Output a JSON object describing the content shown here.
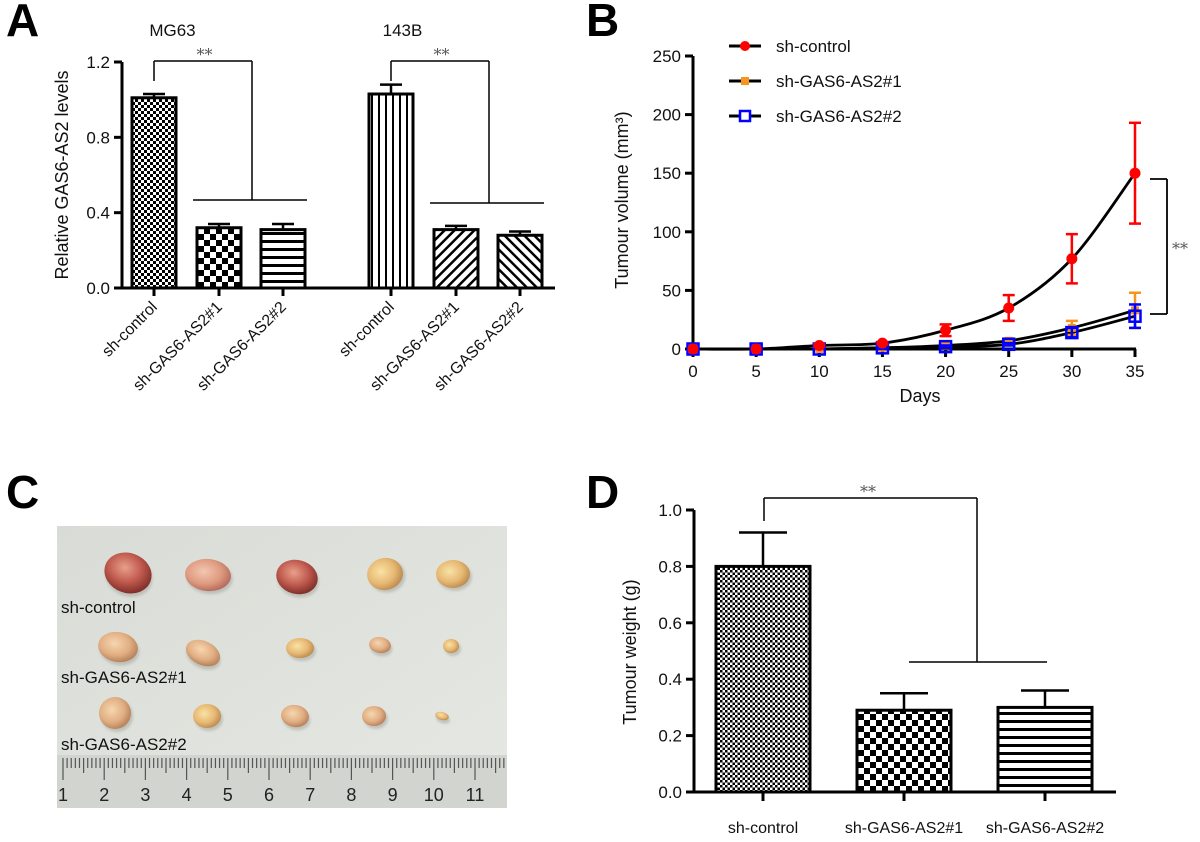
{
  "figure": {
    "panels": {
      "A": "A",
      "B": "B",
      "C": "C",
      "D": "D"
    }
  },
  "chart_data": [
    {
      "id": "A",
      "type": "bar",
      "title": "",
      "ylabel": "Relative GAS6-AS2 levels",
      "xlabel": "",
      "ylim": [
        0,
        1.2
      ],
      "yticks": [
        "0.0",
        "0.4",
        "0.8",
        "1.2"
      ],
      "ytick_values": [
        0,
        0.4,
        0.8,
        1.2
      ],
      "groups": [
        {
          "name": "MG63",
          "categories": [
            "sh-control",
            "sh-GAS6-AS2#1",
            "sh-GAS6-AS2#2"
          ],
          "values": [
            1.01,
            0.32,
            0.31
          ],
          "errors": [
            0.02,
            0.02,
            0.03
          ],
          "patterns": [
            "fine-check",
            "coarse-check",
            "horizontal-lines"
          ],
          "significance": "**"
        },
        {
          "name": "143B",
          "categories": [
            "sh-control",
            "sh-GAS6-AS2#1",
            "sh-GAS6-AS2#2"
          ],
          "values": [
            1.03,
            0.31,
            0.28
          ],
          "errors": [
            0.05,
            0.02,
            0.02
          ],
          "patterns": [
            "vertical-lines",
            "diagonal-right",
            "diagonal-left"
          ],
          "significance": "**"
        }
      ]
    },
    {
      "id": "B",
      "type": "line",
      "title": "",
      "xlabel": "Days",
      "ylabel": "Tumour volume (mm³)",
      "xlim": [
        0,
        35
      ],
      "ylim": [
        0,
        250
      ],
      "xticks": [
        "0",
        "5",
        "10",
        "15",
        "20",
        "25",
        "30",
        "35"
      ],
      "xtick_values": [
        0,
        5,
        10,
        15,
        20,
        25,
        30,
        35
      ],
      "yticks": [
        "0",
        "50",
        "100",
        "150",
        "200",
        "250"
      ],
      "ytick_values": [
        0,
        50,
        100,
        150,
        200,
        250
      ],
      "x": [
        0,
        5,
        10,
        15,
        20,
        25,
        30,
        35
      ],
      "legend_position": "top-left",
      "significance": "**",
      "series": [
        {
          "name": "sh-control",
          "color": "#ff0000",
          "marker": "circle",
          "values": [
            0,
            0,
            3,
            5,
            16,
            35,
            77,
            150
          ],
          "errors": [
            0,
            0,
            1,
            1,
            5,
            11,
            21,
            43
          ]
        },
        {
          "name": "sh-GAS6-AS2#1",
          "color": "#f7941d",
          "marker": "square-filled",
          "values": [
            0,
            0,
            0,
            1,
            3,
            7,
            18,
            33
          ],
          "errors": [
            0,
            0,
            0,
            1,
            1,
            2,
            6,
            15
          ]
        },
        {
          "name": "sh-GAS6-AS2#2",
          "color": "#0000ff",
          "marker": "square-open",
          "values": [
            0,
            0,
            0,
            1,
            2,
            4,
            14,
            28
          ],
          "errors": [
            0,
            0,
            0,
            1,
            1,
            1,
            4,
            10
          ]
        }
      ]
    },
    {
      "id": "D",
      "type": "bar",
      "title": "",
      "xlabel": "",
      "ylabel": "Tumour weight (g)",
      "ylim": [
        0,
        1.0
      ],
      "yticks": [
        "0.0",
        "0.2",
        "0.4",
        "0.6",
        "0.8",
        "1.0"
      ],
      "ytick_values": [
        0,
        0.2,
        0.4,
        0.6,
        0.8,
        1.0
      ],
      "categories": [
        "sh-control",
        "sh-GAS6-AS2#1",
        "sh-GAS6-AS2#2"
      ],
      "values": [
        0.8,
        0.29,
        0.3
      ],
      "errors": [
        0.12,
        0.06,
        0.06
      ],
      "patterns": [
        "fine-check",
        "coarse-check",
        "horizontal-lines"
      ],
      "significance": "**"
    }
  ],
  "photo": {
    "row_labels": [
      "sh-control",
      "sh-GAS6-AS2#1",
      "sh-GAS6-AS2#2"
    ],
    "ruler_numbers": [
      "1",
      "2",
      "3",
      "4",
      "5",
      "6",
      "7",
      "8",
      "9",
      "10",
      "11"
    ]
  }
}
